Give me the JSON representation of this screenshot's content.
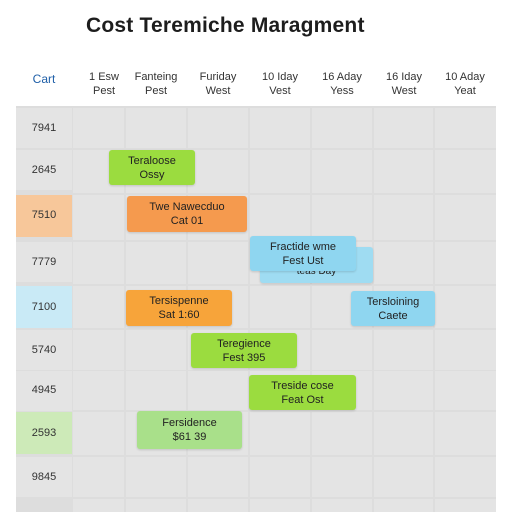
{
  "title": "Cost Teremiche Maragment",
  "corner_label": "Cart",
  "columns": [
    {
      "line1": "1 Esw",
      "line2": "Pest"
    },
    {
      "line1": "Fanteing",
      "line2": "Pest"
    },
    {
      "line1": "Furiday",
      "line2": "West"
    },
    {
      "line1": "10 Iday",
      "line2": "Vest"
    },
    {
      "line1": "16 Aday",
      "line2": "Yess"
    },
    {
      "line1": "16 Iday",
      "line2": "West"
    },
    {
      "line1": "10 Aday",
      "line2": "Yeat"
    }
  ],
  "rows": [
    {
      "label": "7941",
      "highlight": ""
    },
    {
      "label": "2645",
      "highlight": ""
    },
    {
      "label": "7510",
      "highlight": "#f7c79a"
    },
    {
      "label": "7779",
      "highlight": ""
    },
    {
      "label": "7100",
      "highlight": "#c9eaf6"
    },
    {
      "label": "5740",
      "highlight": ""
    },
    {
      "label": "4945",
      "highlight": ""
    },
    {
      "label": "2593",
      "highlight": "#cdeab8"
    },
    {
      "label": "9845",
      "highlight": ""
    }
  ],
  "bars": [
    {
      "line1": "Teraloose",
      "line2": "Ossy",
      "color": "#9bdc3f"
    },
    {
      "line1": "Twe Nawecduo",
      "line2": "Cat 01",
      "color": "#f59a4e"
    },
    {
      "line1": "Fractide wme",
      "line2": "Fest Ust",
      "color": "#8fd6f0"
    },
    {
      "line1": "",
      "line2": "teas Day",
      "color": "#8fd6f0"
    },
    {
      "line1": "Tersispenne",
      "line2": "Sat 1:60",
      "color": "#f7a43a"
    },
    {
      "line1": "Tersloining",
      "line2": "Caete",
      "color": "#8fd6f0"
    },
    {
      "line1": "Teregience",
      "line2": "Fest 395",
      "color": "#9bdc3f"
    },
    {
      "line1": "Treside cose",
      "line2": "Feat Ost",
      "color": "#9bdc3f"
    },
    {
      "line1": "Fersidence",
      "line2": "$61 39",
      "color": "#a9e08a"
    }
  ]
}
